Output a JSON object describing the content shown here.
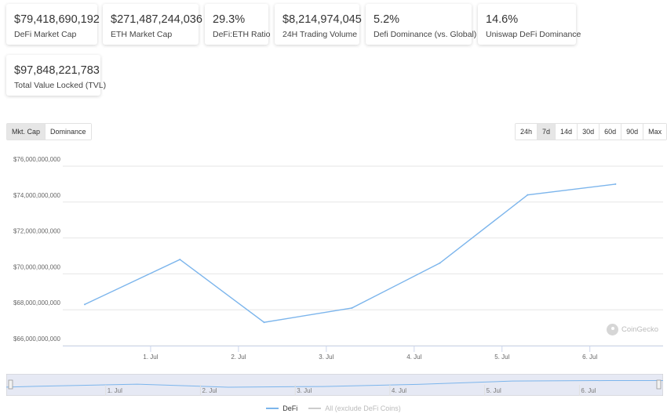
{
  "stats": [
    {
      "value": "$79,418,690,192",
      "label": "DeFi Market Cap"
    },
    {
      "value": "$271,487,244,036",
      "label": "ETH Market Cap"
    },
    {
      "value": "29.3%",
      "label": "DeFi:ETH Ratio"
    },
    {
      "value": "$8,214,974,045",
      "label": "24H Trading Volume"
    },
    {
      "value": "5.2%",
      "label": "Defi Dominance (vs. Global)"
    },
    {
      "value": "14.6%",
      "label": "Uniswap DeFi Dominance"
    },
    {
      "value": "$97,848,221,783",
      "label": "Total Value Locked (TVL)"
    }
  ],
  "view_tabs": [
    "Mkt. Cap",
    "Dominance"
  ],
  "view_tab_active": "Mkt. Cap",
  "range_tabs": [
    "24h",
    "7d",
    "14d",
    "30d",
    "60d",
    "90d",
    "Max"
  ],
  "range_tab_active": "7d",
  "watermark": "CoinGecko",
  "colors": {
    "defi": "#7cb5ec",
    "all": "#cccccc",
    "navigator_mask": "#e6e9f4"
  },
  "chart_data": {
    "type": "line",
    "x_ticks": [
      "1. Jul",
      "2. Jul",
      "3. Jul",
      "4. Jul",
      "5. Jul",
      "6. Jul"
    ],
    "y_ticks": [
      "$66,000,000,000",
      "$68,000,000,000",
      "$70,000,000,000",
      "$72,000,000,000",
      "$74,000,000,000",
      "$76,000,000,000"
    ],
    "ylim": [
      66000000000,
      76000000000
    ],
    "series": [
      {
        "name": "DeFi",
        "points": [
          {
            "x": "2021-06-30 06:00",
            "y": 68300000000
          },
          {
            "x": "2021-07-01 08:00",
            "y": 70800000000
          },
          {
            "x": "2021-07-02 07:00",
            "y": 67300000000
          },
          {
            "x": "2021-07-03 07:00",
            "y": 68100000000
          },
          {
            "x": "2021-07-04 07:00",
            "y": 70600000000
          },
          {
            "x": "2021-07-05 07:00",
            "y": 74400000000
          },
          {
            "x": "2021-07-06 07:00",
            "y": 75000000000
          }
        ]
      },
      {
        "name": "All (exclude DeFi Coins)",
        "points": []
      }
    ]
  }
}
